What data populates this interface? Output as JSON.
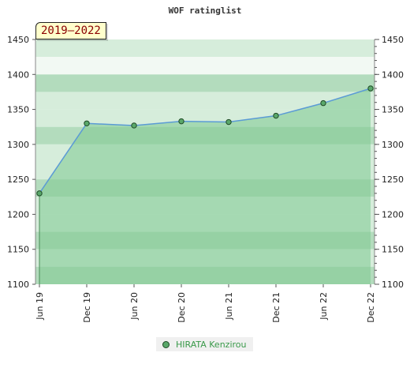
{
  "chart_data": {
    "type": "area",
    "title": "WOF ratinglist",
    "period_badge": "2019–2022",
    "x": [
      "Jun 19",
      "Dec 19",
      "Jun 20",
      "Dec 20",
      "Jun 21",
      "Dec 21",
      "Jun 22",
      "Dec 22"
    ],
    "series": [
      {
        "name": "HIRATA Kenzirou",
        "values": [
          1230,
          1330,
          1327,
          1333,
          1332,
          1341,
          1359,
          1380
        ]
      }
    ],
    "ylim": [
      1100,
      1450
    ],
    "y_ticks": [
      1100,
      1150,
      1200,
      1250,
      1300,
      1350,
      1400,
      1450
    ],
    "y_axis_both_sides": true,
    "grid": "horizontal bands",
    "legend_position": "bottom-center",
    "colors": {
      "line": "#5b9bd5",
      "area": "#7ec98f",
      "marker_fill": "#5aa86a",
      "marker_stroke": "#1f4a26",
      "band_light": "#f2f9f3",
      "band_mid": "#d6eddb",
      "band_dark": "#b3dcbd",
      "badge_bg": "#ffffcc",
      "badge_text": "#8b0000",
      "legend_text": "#3a9a4a"
    }
  }
}
